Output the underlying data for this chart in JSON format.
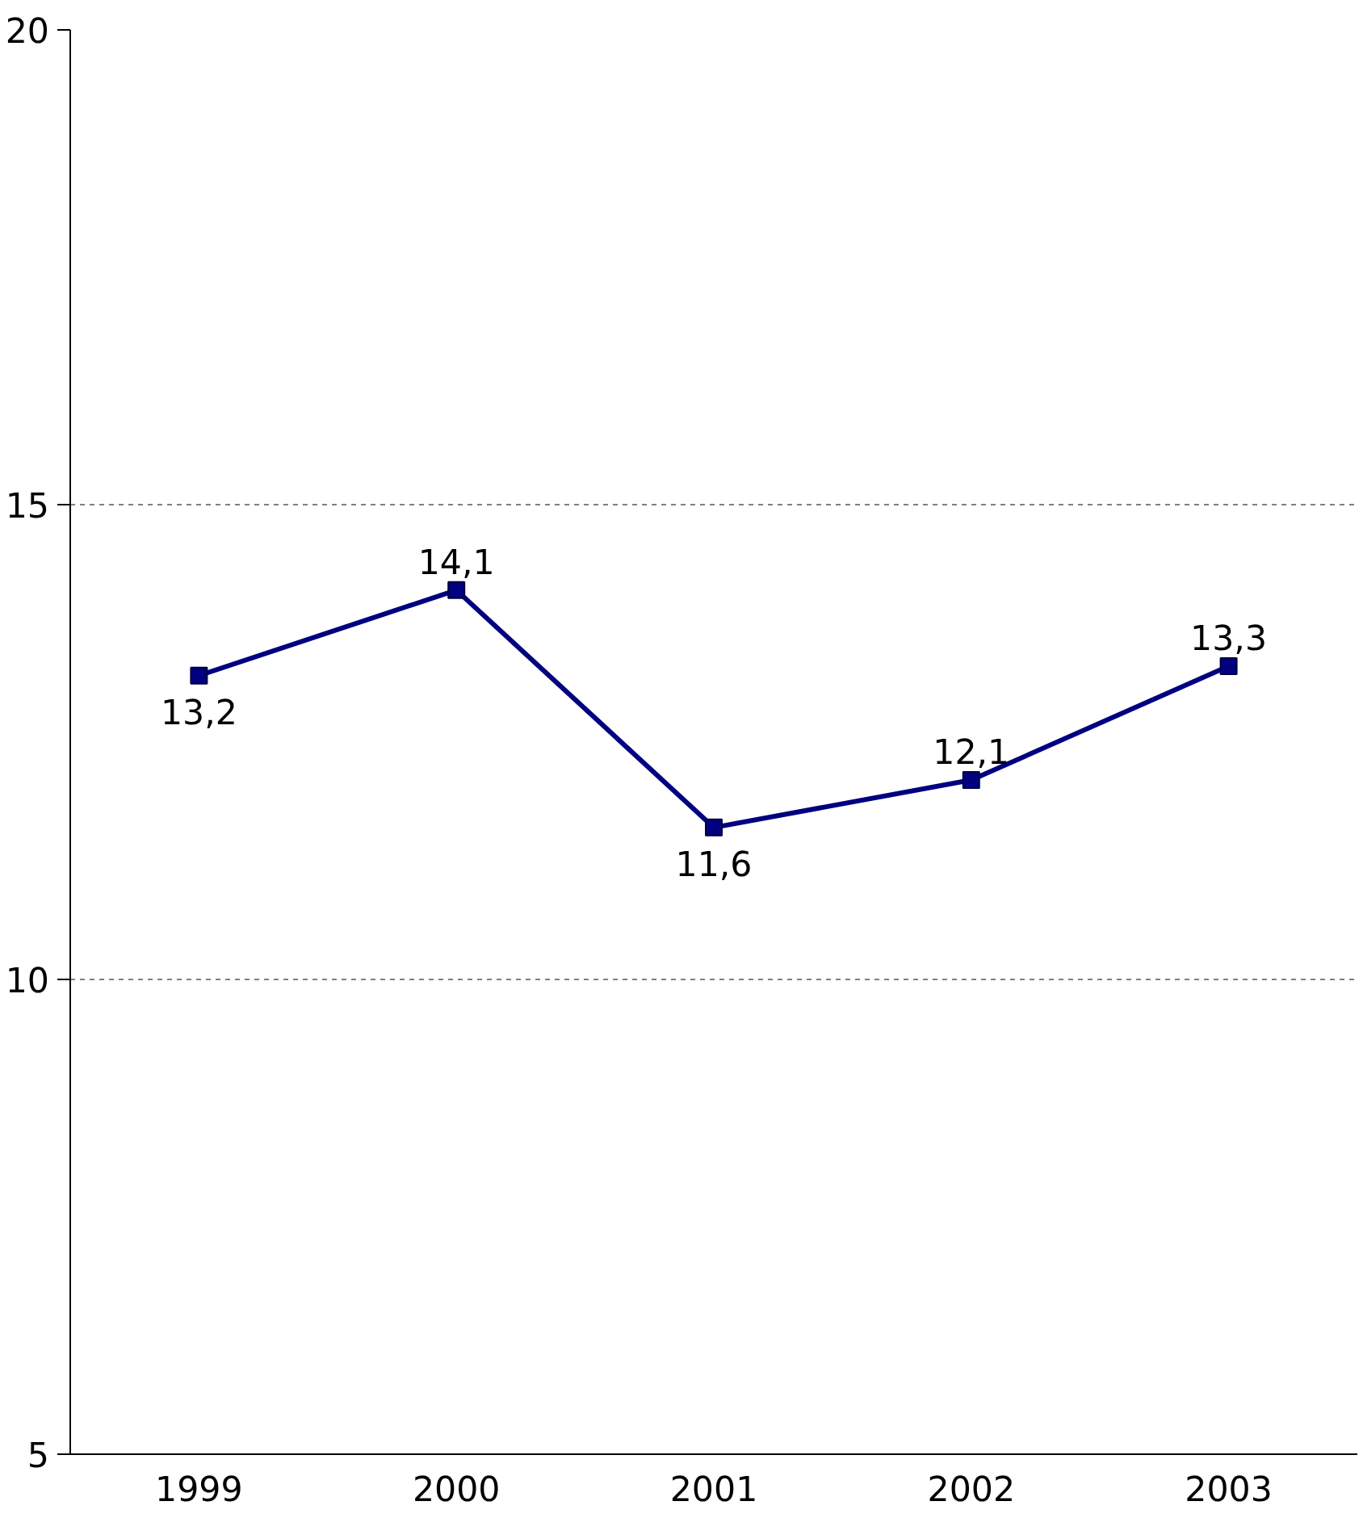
{
  "chart_data": {
    "type": "line",
    "categories": [
      "1999",
      "2000",
      "2001",
      "2002",
      "2003"
    ],
    "series": [
      {
        "color": "#000080",
        "values": [
          13.2,
          14.1,
          11.6,
          12.1,
          13.3
        ],
        "value_labels": [
          "13,2",
          "14,1",
          "11,6",
          "12,1",
          "13,3"
        ]
      }
    ],
    "ylim": [
      5,
      20
    ],
    "yticks": [
      5,
      10,
      15,
      20
    ],
    "grid": "y",
    "marker": "square",
    "line_style": "solid"
  }
}
